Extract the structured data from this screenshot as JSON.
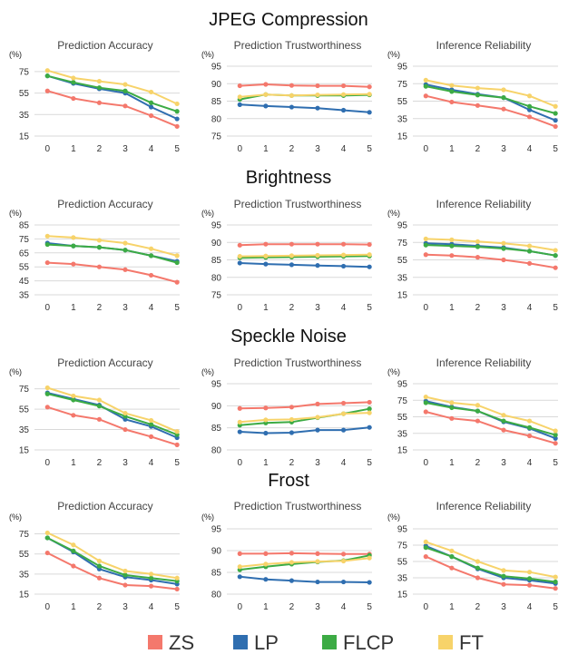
{
  "colors": {
    "ZS": "#f4786c",
    "LP": "#2f6eb0",
    "FLCP": "#3cab44",
    "FT": "#f7d36a"
  },
  "legend": [
    {
      "key": "ZS",
      "label": "ZS"
    },
    {
      "key": "LP",
      "label": "LP"
    },
    {
      "key": "FLCP",
      "label": "FLCP"
    },
    {
      "key": "FT",
      "label": "FT"
    }
  ],
  "sections": [
    "JPEG Compression",
    "Brightness",
    "Speckle Noise",
    "Frost"
  ],
  "chart_data": [
    {
      "type": "line",
      "section": "JPEG Compression",
      "title": "Prediction Accuracy",
      "unit": "(%)",
      "x": [
        0,
        1,
        2,
        3,
        4,
        5
      ],
      "yticks": [
        15,
        35,
        55,
        75
      ],
      "ylim": [
        15,
        80
      ],
      "grid": true,
      "series": [
        {
          "name": "ZS",
          "values": [
            57,
            50,
            46,
            43,
            34,
            24
          ]
        },
        {
          "name": "LP",
          "values": [
            71,
            64,
            59,
            55,
            42,
            31
          ]
        },
        {
          "name": "FLCP",
          "values": [
            71,
            65,
            60,
            57,
            46,
            38
          ]
        },
        {
          "name": "FT",
          "values": [
            76,
            69,
            66,
            63,
            56,
            45
          ]
        }
      ]
    },
    {
      "type": "line",
      "section": "JPEG Compression",
      "title": "Prediction Trustworthiness",
      "unit": "(%)",
      "x": [
        0,
        1,
        2,
        3,
        4,
        5
      ],
      "yticks": [
        75,
        80,
        85,
        90,
        95
      ],
      "ylim": [
        75,
        95
      ],
      "grid": true,
      "series": [
        {
          "name": "ZS",
          "values": [
            89.4,
            89.8,
            89.5,
            89.4,
            89.4,
            89.1
          ]
        },
        {
          "name": "LP",
          "values": [
            84.0,
            83.6,
            83.3,
            83.0,
            82.4,
            81.8
          ]
        },
        {
          "name": "FLCP",
          "values": [
            85.5,
            86.9,
            86.6,
            86.6,
            86.6,
            86.8
          ]
        },
        {
          "name": "FT",
          "values": [
            86.2,
            86.9,
            86.6,
            86.8,
            86.9,
            87.0
          ]
        }
      ]
    },
    {
      "type": "line",
      "section": "JPEG Compression",
      "title": "Inference Reliability",
      "unit": "(%)",
      "x": [
        0,
        1,
        2,
        3,
        4,
        5
      ],
      "yticks": [
        15,
        35,
        55,
        75,
        95
      ],
      "ylim": [
        15,
        95
      ],
      "grid": true,
      "series": [
        {
          "name": "ZS",
          "values": [
            61,
            54,
            50,
            46,
            37,
            26
          ]
        },
        {
          "name": "LP",
          "values": [
            74,
            68,
            63,
            59,
            45,
            33
          ]
        },
        {
          "name": "FLCP",
          "values": [
            72,
            66,
            62,
            59,
            49,
            41
          ]
        },
        {
          "name": "FT",
          "values": [
            79,
            73,
            70,
            68,
            61,
            49
          ]
        }
      ]
    },
    {
      "type": "line",
      "section": "Brightness",
      "title": "Prediction Accuracy",
      "unit": "(%)",
      "x": [
        0,
        1,
        2,
        3,
        4,
        5
      ],
      "yticks": [
        35,
        45,
        55,
        65,
        75,
        85
      ],
      "ylim": [
        35,
        85
      ],
      "grid": true,
      "series": [
        {
          "name": "ZS",
          "values": [
            58,
            57,
            55,
            53,
            49,
            44
          ]
        },
        {
          "name": "LP",
          "values": [
            72,
            70,
            69,
            67,
            63,
            59
          ]
        },
        {
          "name": "FLCP",
          "values": [
            71,
            70,
            69,
            67,
            63,
            58
          ]
        },
        {
          "name": "FT",
          "values": [
            77,
            76,
            74,
            72,
            68,
            63
          ]
        }
      ]
    },
    {
      "type": "line",
      "section": "Brightness",
      "title": "Prediction Trustworthiness",
      "unit": "(%)",
      "x": [
        0,
        1,
        2,
        3,
        4,
        5
      ],
      "yticks": [
        75,
        80,
        85,
        90,
        95
      ],
      "ylim": [
        75,
        95
      ],
      "grid": true,
      "series": [
        {
          "name": "ZS",
          "values": [
            89.2,
            89.5,
            89.5,
            89.5,
            89.5,
            89.4
          ]
        },
        {
          "name": "LP",
          "values": [
            84.1,
            83.8,
            83.6,
            83.4,
            83.2,
            83.0
          ]
        },
        {
          "name": "FLCP",
          "values": [
            85.6,
            85.7,
            85.8,
            85.9,
            86.0,
            86.1
          ]
        },
        {
          "name": "FT",
          "values": [
            86.0,
            86.1,
            86.2,
            86.3,
            86.4,
            86.5
          ]
        }
      ]
    },
    {
      "type": "line",
      "section": "Brightness",
      "title": "Inference Reliability",
      "unit": "(%)",
      "x": [
        0,
        1,
        2,
        3,
        4,
        5
      ],
      "yticks": [
        15,
        35,
        55,
        75,
        95
      ],
      "ylim": [
        15,
        95
      ],
      "grid": true,
      "series": [
        {
          "name": "ZS",
          "values": [
            61,
            60,
            58,
            55,
            51,
            46
          ]
        },
        {
          "name": "LP",
          "values": [
            74,
            73,
            71,
            69,
            65,
            60
          ]
        },
        {
          "name": "FLCP",
          "values": [
            72,
            71,
            70,
            68,
            65,
            60
          ]
        },
        {
          "name": "FT",
          "values": [
            79,
            78,
            76,
            74,
            71,
            66
          ]
        }
      ]
    },
    {
      "type": "line",
      "section": "Speckle Noise",
      "title": "Prediction Accuracy",
      "unit": "(%)",
      "x": [
        0,
        1,
        2,
        3,
        4,
        5
      ],
      "yticks": [
        15,
        35,
        55,
        75
      ],
      "ylim": [
        15,
        80
      ],
      "grid": true,
      "series": [
        {
          "name": "ZS",
          "values": [
            57,
            49,
            45,
            35,
            28,
            20
          ]
        },
        {
          "name": "LP",
          "values": [
            71,
            65,
            59,
            45,
            38,
            27
          ]
        },
        {
          "name": "FLCP",
          "values": [
            70,
            64,
            58,
            48,
            40,
            30
          ]
        },
        {
          "name": "FT",
          "values": [
            76,
            68,
            64,
            51,
            44,
            33
          ]
        }
      ]
    },
    {
      "type": "line",
      "section": "Speckle Noise",
      "title": "Prediction Trustworthiness",
      "unit": "(%)",
      "x": [
        0,
        1,
        2,
        3,
        4,
        5
      ],
      "yticks": [
        80,
        85,
        90,
        95
      ],
      "ylim": [
        80,
        95
      ],
      "grid": true,
      "series": [
        {
          "name": "ZS",
          "values": [
            89.4,
            89.5,
            89.7,
            90.4,
            90.6,
            90.8
          ]
        },
        {
          "name": "LP",
          "values": [
            84.1,
            83.8,
            83.9,
            84.5,
            84.5,
            85.1
          ]
        },
        {
          "name": "FLCP",
          "values": [
            85.6,
            86.1,
            86.3,
            87.3,
            88.2,
            89.3
          ]
        },
        {
          "name": "FT",
          "values": [
            86.3,
            86.8,
            86.9,
            87.4,
            88.2,
            88.4
          ]
        }
      ]
    },
    {
      "type": "line",
      "section": "Speckle Noise",
      "title": "Inference Reliability",
      "unit": "(%)",
      "x": [
        0,
        1,
        2,
        3,
        4,
        5
      ],
      "yticks": [
        15,
        35,
        55,
        75,
        95
      ],
      "ylim": [
        15,
        95
      ],
      "grid": true,
      "series": [
        {
          "name": "ZS",
          "values": [
            61,
            53,
            50,
            39,
            32,
            23
          ]
        },
        {
          "name": "LP",
          "values": [
            74,
            67,
            62,
            49,
            41,
            29
          ]
        },
        {
          "name": "FLCP",
          "values": [
            72,
            66,
            62,
            50,
            42,
            33
          ]
        },
        {
          "name": "FT",
          "values": [
            79,
            72,
            69,
            57,
            50,
            38
          ]
        }
      ]
    },
    {
      "type": "line",
      "section": "Frost",
      "title": "Prediction Accuracy",
      "unit": "(%)",
      "x": [
        0,
        1,
        2,
        3,
        4,
        5
      ],
      "yticks": [
        15,
        35,
        55,
        75
      ],
      "ylim": [
        15,
        80
      ],
      "grid": true,
      "series": [
        {
          "name": "ZS",
          "values": [
            56,
            43,
            31,
            24,
            23,
            20
          ]
        },
        {
          "name": "LP",
          "values": [
            71,
            57,
            40,
            32,
            29,
            25
          ]
        },
        {
          "name": "FLCP",
          "values": [
            71,
            58,
            43,
            34,
            31,
            28
          ]
        },
        {
          "name": "FT",
          "values": [
            76,
            64,
            48,
            38,
            35,
            31
          ]
        }
      ]
    },
    {
      "type": "line",
      "section": "Frost",
      "title": "Prediction Trustworthiness",
      "unit": "(%)",
      "x": [
        0,
        1,
        2,
        3,
        4,
        5
      ],
      "yticks": [
        80,
        85,
        90,
        95
      ],
      "ylim": [
        80,
        95
      ],
      "grid": true,
      "series": [
        {
          "name": "ZS",
          "values": [
            89.3,
            89.3,
            89.4,
            89.3,
            89.2,
            89.2
          ]
        },
        {
          "name": "LP",
          "values": [
            84.0,
            83.4,
            83.1,
            82.8,
            82.8,
            82.7
          ]
        },
        {
          "name": "FLCP",
          "values": [
            85.6,
            86.3,
            86.9,
            87.4,
            87.7,
            88.9
          ]
        },
        {
          "name": "FT",
          "values": [
            86.3,
            86.9,
            87.3,
            87.5,
            87.6,
            88.3
          ]
        }
      ]
    },
    {
      "type": "line",
      "section": "Frost",
      "title": "Inference Reliability",
      "unit": "(%)",
      "x": [
        0,
        1,
        2,
        3,
        4,
        5
      ],
      "yticks": [
        15,
        35,
        55,
        75,
        95
      ],
      "ylim": [
        15,
        95
      ],
      "grid": true,
      "series": [
        {
          "name": "ZS",
          "values": [
            61,
            47,
            35,
            27,
            26,
            22
          ]
        },
        {
          "name": "LP",
          "values": [
            74,
            61,
            46,
            35,
            32,
            28
          ]
        },
        {
          "name": "FLCP",
          "values": [
            72,
            61,
            47,
            37,
            34,
            30
          ]
        },
        {
          "name": "FT",
          "values": [
            79,
            68,
            55,
            44,
            42,
            36
          ]
        }
      ]
    }
  ]
}
